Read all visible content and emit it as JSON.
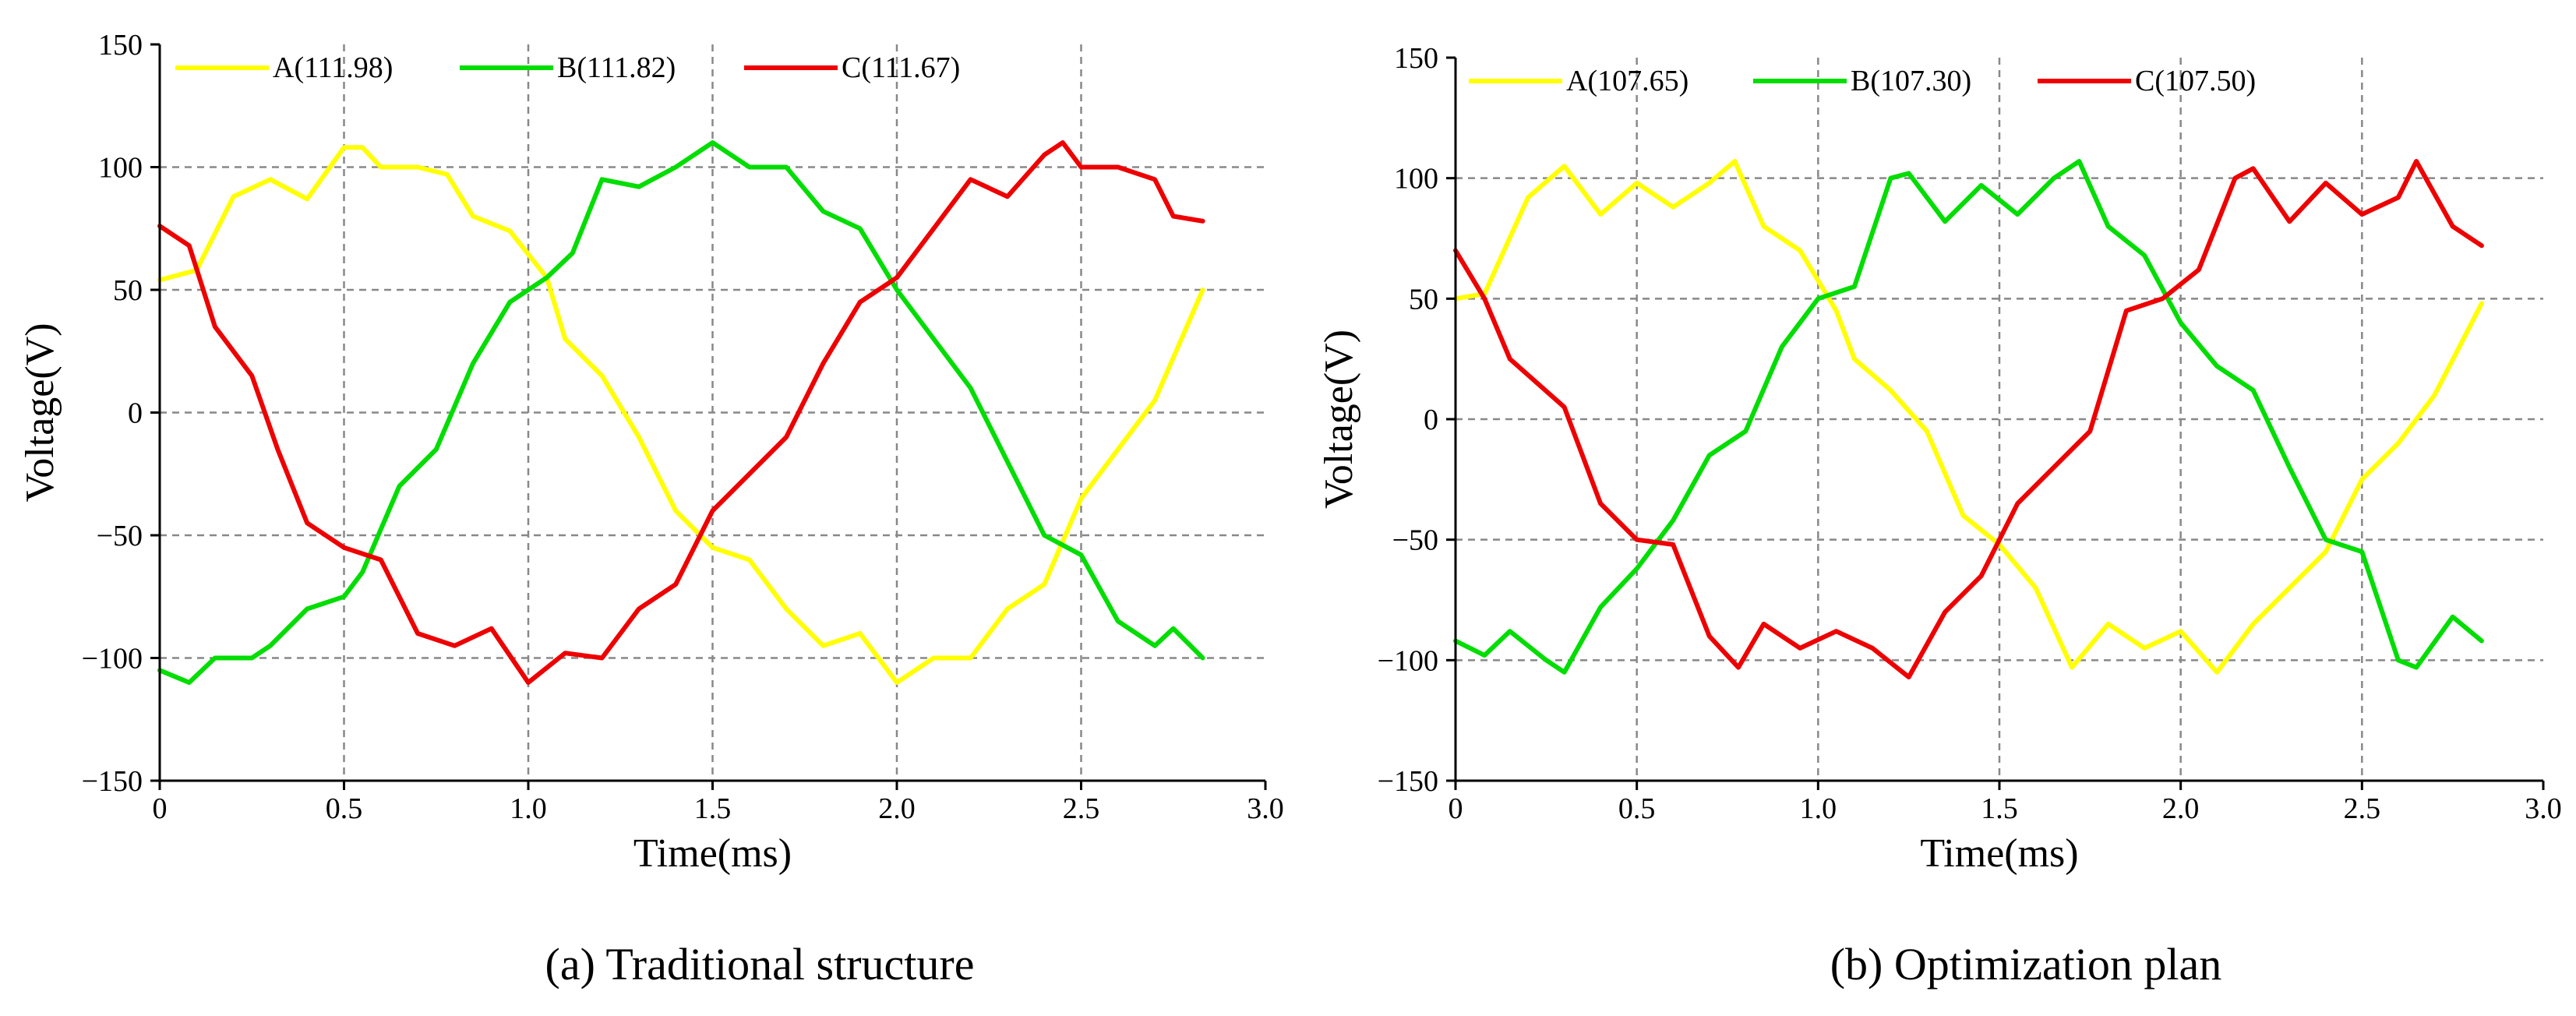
{
  "chart_data": [
    {
      "type": "line",
      "title": "",
      "caption": "(a) Traditional structure",
      "xlabel": "Time(ms)",
      "ylabel": "Voltage(V)",
      "xlim": [
        0,
        3.0
      ],
      "ylim": [
        -150,
        150
      ],
      "xticks": [
        0,
        0.5,
        1.0,
        1.5,
        2.0,
        2.5,
        3.0
      ],
      "xtick_labels": [
        "0",
        "0.5",
        "1.0",
        "1.5",
        "2.0",
        "2.5",
        "3.0"
      ],
      "yticks": [
        -150,
        -100,
        -50,
        0,
        50,
        100,
        150
      ],
      "ytick_labels": [
        "−150",
        "−100",
        "−50",
        "0",
        "50",
        "100",
        "150"
      ],
      "grid": true,
      "legend_position": "top",
      "series": [
        {
          "name": "A(111.98)",
          "color": "#ffff00",
          "points": [
            [
              0,
              54
            ],
            [
              0.1,
              58
            ],
            [
              0.2,
              88
            ],
            [
              0.3,
              95
            ],
            [
              0.4,
              87
            ],
            [
              0.5,
              108
            ],
            [
              0.55,
              108
            ],
            [
              0.6,
              100
            ],
            [
              0.7,
              100
            ],
            [
              0.78,
              97
            ],
            [
              0.85,
              80
            ],
            [
              0.95,
              74
            ],
            [
              1.05,
              55
            ],
            [
              1.1,
              30
            ],
            [
              1.2,
              15
            ],
            [
              1.3,
              -10
            ],
            [
              1.4,
              -40
            ],
            [
              1.5,
              -55
            ],
            [
              1.6,
              -60
            ],
            [
              1.7,
              -80
            ],
            [
              1.8,
              -95
            ],
            [
              1.9,
              -90
            ],
            [
              2.0,
              -110
            ],
            [
              2.1,
              -100
            ],
            [
              2.2,
              -100
            ],
            [
              2.3,
              -80
            ],
            [
              2.4,
              -70
            ],
            [
              2.5,
              -35
            ],
            [
              2.6,
              -15
            ],
            [
              2.7,
              5
            ],
            [
              2.83,
              50
            ]
          ]
        },
        {
          "name": "B(111.82)",
          "color": "#00dd00",
          "points": [
            [
              0,
              -105
            ],
            [
              0.08,
              -110
            ],
            [
              0.15,
              -100
            ],
            [
              0.25,
              -100
            ],
            [
              0.3,
              -95
            ],
            [
              0.4,
              -80
            ],
            [
              0.5,
              -75
            ],
            [
              0.55,
              -65
            ],
            [
              0.65,
              -30
            ],
            [
              0.75,
              -15
            ],
            [
              0.85,
              20
            ],
            [
              0.95,
              45
            ],
            [
              1.05,
              55
            ],
            [
              1.12,
              65
            ],
            [
              1.2,
              95
            ],
            [
              1.3,
              92
            ],
            [
              1.4,
              100
            ],
            [
              1.5,
              110
            ],
            [
              1.6,
              100
            ],
            [
              1.7,
              100
            ],
            [
              1.8,
              82
            ],
            [
              1.9,
              75
            ],
            [
              2.0,
              50
            ],
            [
              2.1,
              30
            ],
            [
              2.2,
              10
            ],
            [
              2.3,
              -20
            ],
            [
              2.4,
              -50
            ],
            [
              2.5,
              -58
            ],
            [
              2.6,
              -85
            ],
            [
              2.7,
              -95
            ],
            [
              2.75,
              -88
            ],
            [
              2.83,
              -100
            ]
          ]
        },
        {
          "name": "C(111.67)",
          "color": "#ee0000",
          "points": [
            [
              0,
              76
            ],
            [
              0.08,
              68
            ],
            [
              0.15,
              35
            ],
            [
              0.25,
              15
            ],
            [
              0.32,
              -15
            ],
            [
              0.4,
              -45
            ],
            [
              0.5,
              -55
            ],
            [
              0.6,
              -60
            ],
            [
              0.7,
              -90
            ],
            [
              0.8,
              -95
            ],
            [
              0.9,
              -88
            ],
            [
              1.0,
              -110
            ],
            [
              1.1,
              -98
            ],
            [
              1.2,
              -100
            ],
            [
              1.3,
              -80
            ],
            [
              1.4,
              -70
            ],
            [
              1.5,
              -40
            ],
            [
              1.6,
              -25
            ],
            [
              1.7,
              -10
            ],
            [
              1.8,
              20
            ],
            [
              1.9,
              45
            ],
            [
              2.0,
              55
            ],
            [
              2.1,
              75
            ],
            [
              2.2,
              95
            ],
            [
              2.3,
              88
            ],
            [
              2.4,
              105
            ],
            [
              2.45,
              110
            ],
            [
              2.5,
              100
            ],
            [
              2.6,
              100
            ],
            [
              2.7,
              95
            ],
            [
              2.75,
              80
            ],
            [
              2.83,
              78
            ]
          ]
        }
      ]
    },
    {
      "type": "line",
      "title": "",
      "caption": "(b) Optimization plan",
      "xlabel": "Time(ms)",
      "ylabel": "Voltage(V)",
      "xlim": [
        0,
        3.0
      ],
      "ylim": [
        -150,
        150
      ],
      "xticks": [
        0,
        0.5,
        1.0,
        1.5,
        2.0,
        2.5,
        3.0
      ],
      "xtick_labels": [
        "0",
        "0.5",
        "1.0",
        "1.5",
        "2.0",
        "2.5",
        "3.0"
      ],
      "yticks": [
        -150,
        -100,
        -50,
        0,
        50,
        100,
        150
      ],
      "ytick_labels": [
        "−150",
        "−100",
        "−50",
        "0",
        "50",
        "100",
        "150"
      ],
      "grid": true,
      "legend_position": "top",
      "series": [
        {
          "name": "A(107.65)",
          "color": "#ffff00",
          "points": [
            [
              0,
              50
            ],
            [
              0.08,
              52
            ],
            [
              0.2,
              92
            ],
            [
              0.3,
              105
            ],
            [
              0.4,
              85
            ],
            [
              0.5,
              98
            ],
            [
              0.6,
              88
            ],
            [
              0.7,
              98
            ],
            [
              0.77,
              107
            ],
            [
              0.85,
              80
            ],
            [
              0.95,
              70
            ],
            [
              1.05,
              45
            ],
            [
              1.1,
              25
            ],
            [
              1.2,
              12
            ],
            [
              1.3,
              -5
            ],
            [
              1.4,
              -40
            ],
            [
              1.5,
              -52
            ],
            [
              1.6,
              -70
            ],
            [
              1.7,
              -103
            ],
            [
              1.8,
              -85
            ],
            [
              1.9,
              -95
            ],
            [
              2.0,
              -88
            ],
            [
              2.1,
              -105
            ],
            [
              2.2,
              -85
            ],
            [
              2.3,
              -70
            ],
            [
              2.4,
              -55
            ],
            [
              2.5,
              -25
            ],
            [
              2.6,
              -10
            ],
            [
              2.7,
              10
            ],
            [
              2.83,
              48
            ]
          ]
        },
        {
          "name": "B(107.30)",
          "color": "#00dd00",
          "points": [
            [
              0,
              -92
            ],
            [
              0.08,
              -98
            ],
            [
              0.15,
              -88
            ],
            [
              0.25,
              -100
            ],
            [
              0.3,
              -105
            ],
            [
              0.4,
              -78
            ],
            [
              0.5,
              -62
            ],
            [
              0.6,
              -42
            ],
            [
              0.7,
              -15
            ],
            [
              0.8,
              -5
            ],
            [
              0.9,
              30
            ],
            [
              1.0,
              50
            ],
            [
              1.1,
              55
            ],
            [
              1.2,
              100
            ],
            [
              1.25,
              102
            ],
            [
              1.35,
              82
            ],
            [
              1.45,
              97
            ],
            [
              1.55,
              85
            ],
            [
              1.65,
              100
            ],
            [
              1.72,
              107
            ],
            [
              1.8,
              80
            ],
            [
              1.9,
              68
            ],
            [
              2.0,
              40
            ],
            [
              2.1,
              22
            ],
            [
              2.2,
              12
            ],
            [
              2.3,
              -20
            ],
            [
              2.4,
              -50
            ],
            [
              2.5,
              -55
            ],
            [
              2.6,
              -100
            ],
            [
              2.65,
              -103
            ],
            [
              2.75,
              -82
            ],
            [
              2.83,
              -92
            ]
          ]
        },
        {
          "name": "C(107.50)",
          "color": "#ee0000",
          "points": [
            [
              0,
              70
            ],
            [
              0.08,
              50
            ],
            [
              0.15,
              25
            ],
            [
              0.3,
              5
            ],
            [
              0.4,
              -35
            ],
            [
              0.5,
              -50
            ],
            [
              0.6,
              -52
            ],
            [
              0.7,
              -90
            ],
            [
              0.78,
              -103
            ],
            [
              0.85,
              -85
            ],
            [
              0.95,
              -95
            ],
            [
              1.05,
              -88
            ],
            [
              1.15,
              -95
            ],
            [
              1.25,
              -107
            ],
            [
              1.35,
              -80
            ],
            [
              1.45,
              -65
            ],
            [
              1.55,
              -35
            ],
            [
              1.65,
              -20
            ],
            [
              1.75,
              -5
            ],
            [
              1.85,
              45
            ],
            [
              1.95,
              50
            ],
            [
              2.05,
              62
            ],
            [
              2.15,
              100
            ],
            [
              2.2,
              104
            ],
            [
              2.3,
              82
            ],
            [
              2.4,
              98
            ],
            [
              2.5,
              85
            ],
            [
              2.6,
              92
            ],
            [
              2.65,
              107
            ],
            [
              2.75,
              80
            ],
            [
              2.83,
              72
            ]
          ]
        }
      ]
    }
  ]
}
